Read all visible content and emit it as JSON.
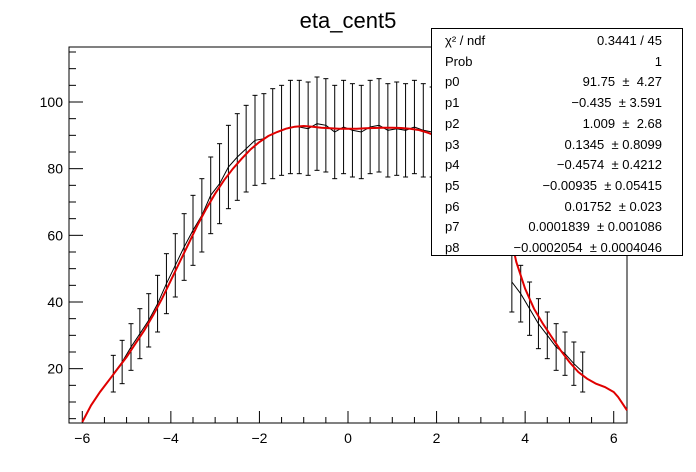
{
  "chart_data": {
    "type": "scatter",
    "title": "eta_cent5",
    "xlabel": "",
    "ylabel": "",
    "xlim": [
      -6.3,
      6.3
    ],
    "ylim": [
      3.7,
      116.5
    ],
    "x_ticks": [
      -6,
      -4,
      -2,
      0,
      2,
      4,
      6
    ],
    "y_ticks": [
      20,
      40,
      60,
      80,
      100
    ],
    "grid": false,
    "legend": "none",
    "series": [
      {
        "kind": "histogram-errorbars",
        "color": "#000000",
        "points": [
          {
            "x": -5.3,
            "y": 18.5,
            "err": 5.5
          },
          {
            "x": -5.1,
            "y": 22.0,
            "err": 6.5
          },
          {
            "x": -4.9,
            "y": 26.5,
            "err": 7.0
          },
          {
            "x": -4.7,
            "y": 30.5,
            "err": 7.5
          },
          {
            "x": -4.5,
            "y": 34.5,
            "err": 8.0
          },
          {
            "x": -4.3,
            "y": 39.5,
            "err": 8.5
          },
          {
            "x": -4.1,
            "y": 45.5,
            "err": 9.0
          },
          {
            "x": -3.9,
            "y": 51.0,
            "err": 9.5
          },
          {
            "x": -3.7,
            "y": 56.5,
            "err": 10.0
          },
          {
            "x": -3.5,
            "y": 61.5,
            "err": 10.5
          },
          {
            "x": -3.3,
            "y": 66.0,
            "err": 11.0
          },
          {
            "x": -3.1,
            "y": 72.0,
            "err": 11.5
          },
          {
            "x": -2.9,
            "y": 75.5,
            "err": 12.0
          },
          {
            "x": -2.7,
            "y": 80.5,
            "err": 12.5
          },
          {
            "x": -2.5,
            "y": 83.5,
            "err": 13.0
          },
          {
            "x": -2.3,
            "y": 86.0,
            "err": 13.0
          },
          {
            "x": -2.1,
            "y": 88.5,
            "err": 13.5
          },
          {
            "x": -1.9,
            "y": 89.0,
            "err": 13.5
          },
          {
            "x": -1.7,
            "y": 90.5,
            "err": 13.5
          },
          {
            "x": -1.5,
            "y": 91.5,
            "err": 13.5
          },
          {
            "x": -1.3,
            "y": 92.5,
            "err": 14.0
          },
          {
            "x": -1.1,
            "y": 92.5,
            "err": 14.0
          },
          {
            "x": -0.9,
            "y": 92.0,
            "err": 14.0
          },
          {
            "x": -0.7,
            "y": 93.5,
            "err": 14.0
          },
          {
            "x": -0.5,
            "y": 93.0,
            "err": 14.0
          },
          {
            "x": -0.3,
            "y": 91.0,
            "err": 14.0
          },
          {
            "x": -0.1,
            "y": 92.5,
            "err": 14.0
          },
          {
            "x": 0.1,
            "y": 91.5,
            "err": 14.0
          },
          {
            "x": 0.3,
            "y": 91.0,
            "err": 14.0
          },
          {
            "x": 0.5,
            "y": 92.5,
            "err": 14.0
          },
          {
            "x": 0.7,
            "y": 93.0,
            "err": 14.0
          },
          {
            "x": 0.9,
            "y": 91.5,
            "err": 14.0
          },
          {
            "x": 1.1,
            "y": 92.0,
            "err": 14.0
          },
          {
            "x": 1.3,
            "y": 91.5,
            "err": 14.0
          },
          {
            "x": 1.5,
            "y": 92.5,
            "err": 14.0
          },
          {
            "x": 1.7,
            "y": 91.5,
            "err": 14.0
          },
          {
            "x": 1.9,
            "y": 91.0,
            "err": 13.5
          },
          {
            "x": 3.7,
            "y": 46.0,
            "err": 9.0
          },
          {
            "x": 3.9,
            "y": 42.5,
            "err": 8.5
          },
          {
            "x": 4.1,
            "y": 38.0,
            "err": 8.0
          },
          {
            "x": 4.3,
            "y": 33.5,
            "err": 7.5
          },
          {
            "x": 4.5,
            "y": 30.0,
            "err": 7.0
          },
          {
            "x": 4.7,
            "y": 26.5,
            "err": 7.0
          },
          {
            "x": 4.9,
            "y": 24.5,
            "err": 6.5
          },
          {
            "x": 5.1,
            "y": 21.5,
            "err": 6.5
          },
          {
            "x": 5.3,
            "y": 19.0,
            "err": 6.0
          }
        ]
      },
      {
        "kind": "fit-curve",
        "color": "#e00000",
        "points": [
          {
            "x": -6.0,
            "y": 4.0
          },
          {
            "x": -5.8,
            "y": 9.0
          },
          {
            "x": -5.6,
            "y": 13.0
          },
          {
            "x": -5.4,
            "y": 16.5
          },
          {
            "x": -5.2,
            "y": 20.0
          },
          {
            "x": -5.0,
            "y": 23.5
          },
          {
            "x": -4.8,
            "y": 27.5
          },
          {
            "x": -4.6,
            "y": 31.5
          },
          {
            "x": -4.4,
            "y": 36.0
          },
          {
            "x": -4.2,
            "y": 41.0
          },
          {
            "x": -4.0,
            "y": 46.5
          },
          {
            "x": -3.8,
            "y": 52.0
          },
          {
            "x": -3.6,
            "y": 57.5
          },
          {
            "x": -3.4,
            "y": 63.0
          },
          {
            "x": -3.2,
            "y": 68.0
          },
          {
            "x": -3.0,
            "y": 72.5
          },
          {
            "x": -2.8,
            "y": 76.5
          },
          {
            "x": -2.6,
            "y": 80.0
          },
          {
            "x": -2.4,
            "y": 83.0
          },
          {
            "x": -2.2,
            "y": 85.8
          },
          {
            "x": -2.0,
            "y": 88.0
          },
          {
            "x": -1.8,
            "y": 89.8
          },
          {
            "x": -1.6,
            "y": 91.0
          },
          {
            "x": -1.4,
            "y": 92.0
          },
          {
            "x": -1.2,
            "y": 92.6
          },
          {
            "x": -1.0,
            "y": 92.8
          },
          {
            "x": -0.8,
            "y": 92.6
          },
          {
            "x": -0.6,
            "y": 92.3
          },
          {
            "x": -0.4,
            "y": 92.1
          },
          {
            "x": -0.2,
            "y": 92.0
          },
          {
            "x": 0.0,
            "y": 92.0
          },
          {
            "x": 0.2,
            "y": 92.0
          },
          {
            "x": 0.4,
            "y": 92.1
          },
          {
            "x": 0.6,
            "y": 92.2
          },
          {
            "x": 0.8,
            "y": 92.3
          },
          {
            "x": 1.0,
            "y": 92.3
          },
          {
            "x": 1.2,
            "y": 92.2
          },
          {
            "x": 1.4,
            "y": 92.0
          },
          {
            "x": 1.6,
            "y": 91.6
          },
          {
            "x": 1.8,
            "y": 90.8
          },
          {
            "x": 2.0,
            "y": 89.8
          },
          {
            "x": 3.7,
            "y": 58.0
          },
          {
            "x": 3.8,
            "y": 52.0
          },
          {
            "x": 4.0,
            "y": 44.0
          },
          {
            "x": 4.2,
            "y": 38.0
          },
          {
            "x": 4.4,
            "y": 33.5
          },
          {
            "x": 4.6,
            "y": 29.5
          },
          {
            "x": 4.8,
            "y": 25.5
          },
          {
            "x": 5.0,
            "y": 22.0
          },
          {
            "x": 5.2,
            "y": 19.0
          },
          {
            "x": 5.4,
            "y": 17.0
          },
          {
            "x": 5.6,
            "y": 15.5
          },
          {
            "x": 5.8,
            "y": 14.5
          },
          {
            "x": 6.0,
            "y": 13.0
          },
          {
            "x": 6.1,
            "y": 11.5
          },
          {
            "x": 6.2,
            "y": 9.5
          },
          {
            "x": 6.3,
            "y": 7.5
          }
        ]
      }
    ],
    "stats_box": [
      {
        "name": "χ² / ndf",
        "value": "0.3441 / 45"
      },
      {
        "name": "Prob",
        "value": "1"
      },
      {
        "name": "p0",
        "value": "91.75  ±  4.27"
      },
      {
        "name": "p1",
        "value": "−0.435  ± 3.591"
      },
      {
        "name": "p2",
        "value": "1.009  ±  2.68"
      },
      {
        "name": "p3",
        "value": "0.1345  ± 0.8099"
      },
      {
        "name": "p4",
        "value": "−0.4574  ± 0.4212"
      },
      {
        "name": "p5",
        "value": "−0.00935  ± 0.05415"
      },
      {
        "name": "p6",
        "value": "0.01752  ± 0.023"
      },
      {
        "name": "p7",
        "value": "0.0001839  ± 0.001086"
      },
      {
        "name": "p8",
        "value": "−0.0002054  ± 0.0004046"
      }
    ]
  }
}
